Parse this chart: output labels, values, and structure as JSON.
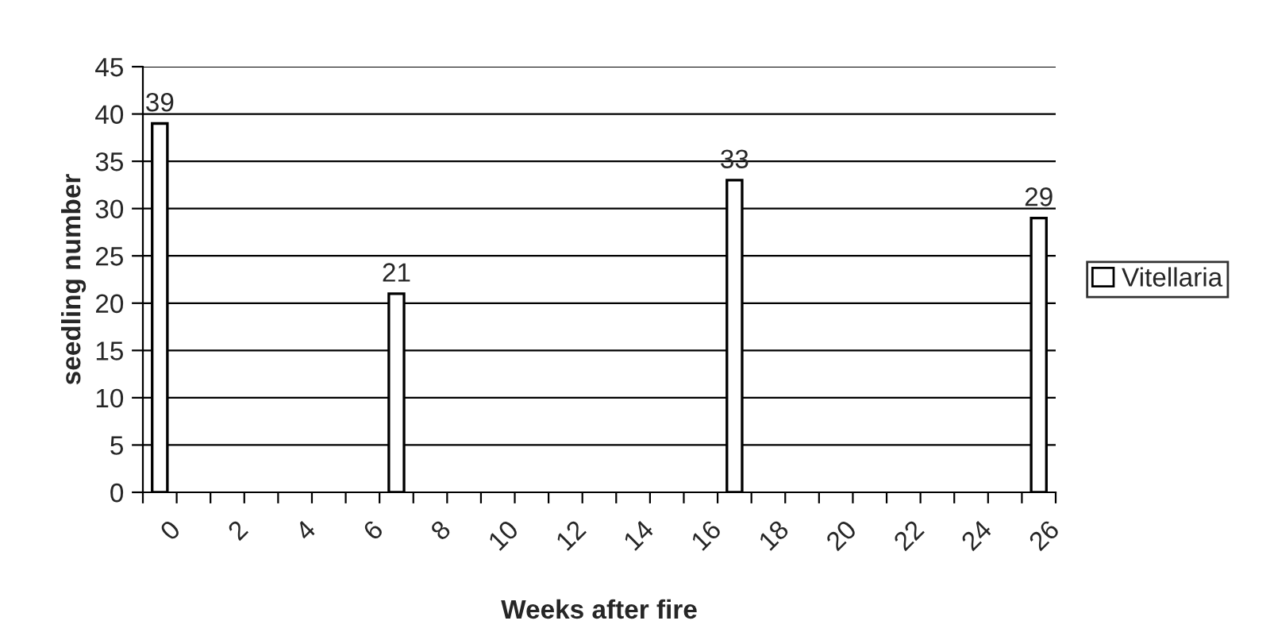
{
  "chart_data": {
    "type": "bar",
    "xlabel": "Weeks after fire",
    "ylabel": "seedling number",
    "categories": [
      "0",
      null,
      "2",
      null,
      "4",
      null,
      "6",
      null,
      "8",
      null,
      "10",
      null,
      "12",
      null,
      "14",
      null,
      "16",
      null,
      "18",
      null,
      "20",
      null,
      "22",
      null,
      "24",
      null,
      "26"
    ],
    "series": [
      {
        "name": "Vitellaria",
        "color": "#ffffff",
        "values": [
          39,
          null,
          null,
          null,
          null,
          null,
          null,
          21,
          null,
          null,
          null,
          null,
          null,
          null,
          null,
          null,
          null,
          33,
          null,
          null,
          null,
          null,
          null,
          null,
          null,
          null,
          29
        ]
      }
    ],
    "ylim": [
      0,
      45
    ],
    "yticks": [
      0,
      5,
      10,
      15,
      20,
      25,
      30,
      35,
      40,
      45
    ],
    "grid": "y",
    "legend": "right",
    "data_labels": true
  }
}
